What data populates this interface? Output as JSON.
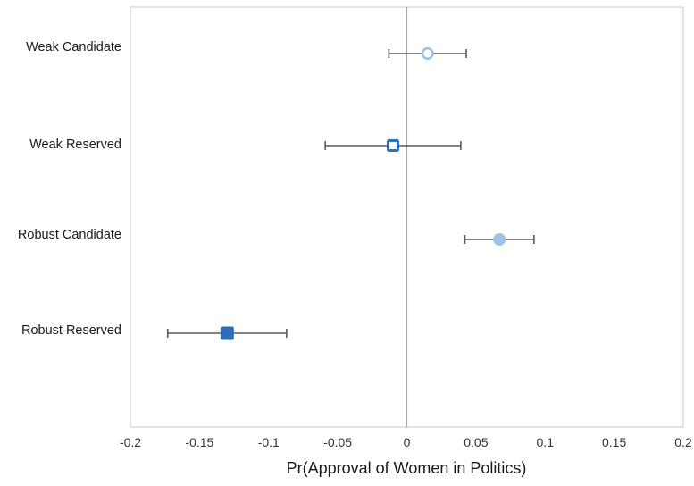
{
  "chart_data": {
    "type": "scatter",
    "title": "",
    "xlabel": "Pr(Approval of Women in Politics)",
    "ylabel": "",
    "xlim": [
      -0.2,
      0.2
    ],
    "x_ticks": [
      -0.2,
      -0.15,
      -0.1,
      -0.05,
      0,
      0.05,
      0.1,
      0.15,
      0.2
    ],
    "x_tick_labels": [
      "-0.2",
      "-0.15",
      "-0.1",
      "-0.05",
      "0",
      "0.05",
      "0.1",
      "0.15",
      "0.2"
    ],
    "grid": false,
    "reference_line_x": 0,
    "categories": [
      "Weak Candidate",
      "Weak Reserved",
      "Robust Candidate",
      "Robust Reserved"
    ],
    "series": [
      {
        "points": [
          {
            "category": "Weak Candidate",
            "estimate": 0.015,
            "ci_low": -0.013,
            "ci_high": 0.043,
            "marker": "circle",
            "filled": false,
            "color": "#9dc3e6"
          },
          {
            "category": "Weak Reserved",
            "estimate": -0.01,
            "ci_low": -0.059,
            "ci_high": 0.039,
            "marker": "square",
            "filled": false,
            "color": "#2e6dba"
          },
          {
            "category": "Robust Candidate",
            "estimate": 0.067,
            "ci_low": 0.042,
            "ci_high": 0.092,
            "marker": "circle",
            "filled": true,
            "color": "#9dc3e6"
          },
          {
            "category": "Robust Reserved",
            "estimate": -0.13,
            "ci_low": -0.173,
            "ci_high": -0.087,
            "marker": "square",
            "filled": true,
            "color": "#2e6dba"
          }
        ]
      }
    ],
    "colors": {
      "frame": "#c8c8c8",
      "zero_line": "#a6a6a6",
      "error_bar": "#595959",
      "candidate": "#9dc3e6",
      "reserved": "#2e6dba"
    }
  }
}
